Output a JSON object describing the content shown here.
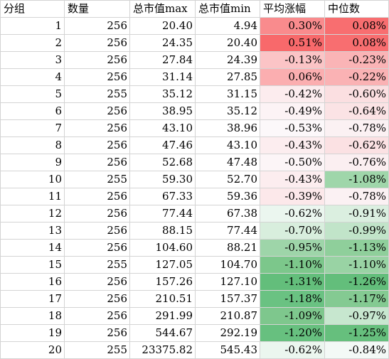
{
  "table": {
    "headers": [
      "分组",
      "数量",
      "总市值max",
      "总市值min",
      "平均涨幅",
      "中位数"
    ],
    "rows": [
      {
        "group": "1",
        "count": "256",
        "max": "20.40",
        "min": "4.94",
        "avg": "0.30%",
        "median": "0.08%",
        "avg_color": "#f98b8d",
        "median_color": "#f86e70"
      },
      {
        "group": "2",
        "count": "256",
        "max": "24.35",
        "min": "20.40",
        "avg": "0.51%",
        "median": "0.08%",
        "avg_color": "#f8696b",
        "median_color": "#f86e70"
      },
      {
        "group": "3",
        "count": "256",
        "max": "27.84",
        "min": "24.39",
        "avg": "-0.13%",
        "median": "-0.23%",
        "avg_color": "#fbc4c6",
        "median_color": "#fab4b6"
      },
      {
        "group": "4",
        "count": "256",
        "max": "31.14",
        "min": "27.85",
        "avg": "0.06%",
        "median": "-0.22%",
        "avg_color": "#fbaeb0",
        "median_color": "#fab2b4"
      },
      {
        "group": "5",
        "count": "255",
        "max": "35.12",
        "min": "31.15",
        "avg": "-0.42%",
        "median": "-0.60%",
        "avg_color": "#fcecee",
        "median_color": "#fbdfe1"
      },
      {
        "group": "6",
        "count": "256",
        "max": "38.95",
        "min": "35.12",
        "avg": "-0.49%",
        "median": "-0.64%",
        "avg_color": "#fcf3f5",
        "median_color": "#fbe3e5"
      },
      {
        "group": "7",
        "count": "256",
        "max": "43.10",
        "min": "38.96",
        "avg": "-0.53%",
        "median": "-0.78%",
        "avg_color": "#fcf8fa",
        "median_color": "#fbf1f3"
      },
      {
        "group": "8",
        "count": "256",
        "max": "47.46",
        "min": "43.10",
        "avg": "-0.43%",
        "median": "-0.62%",
        "avg_color": "#fcedef",
        "median_color": "#fbe1e3"
      },
      {
        "group": "9",
        "count": "256",
        "max": "52.68",
        "min": "47.48",
        "avg": "-0.50%",
        "median": "-0.76%",
        "avg_color": "#fcf5f7",
        "median_color": "#fbeff1"
      },
      {
        "group": "10",
        "count": "255",
        "max": "59.30",
        "min": "52.70",
        "avg": "-0.43%",
        "median": "-1.08%",
        "avg_color": "#fcedef",
        "median_color": "#9fd6aa"
      },
      {
        "group": "11",
        "count": "256",
        "max": "67.33",
        "min": "59.36",
        "avg": "-0.39%",
        "median": "-0.78%",
        "avg_color": "#fce8ea",
        "median_color": "#fbf1f3"
      },
      {
        "group": "12",
        "count": "256",
        "max": "77.44",
        "min": "67.38",
        "avg": "-0.62%",
        "median": "-0.91%",
        "avg_color": "#ebf6ef",
        "median_color": "#dbefe0"
      },
      {
        "group": "13",
        "count": "256",
        "max": "88.15",
        "min": "77.44",
        "avg": "-0.70%",
        "median": "-0.99%",
        "avg_color": "#d8eedd",
        "median_color": "#c1e4c9"
      },
      {
        "group": "14",
        "count": "256",
        "max": "104.60",
        "min": "88.21",
        "avg": "-0.95%",
        "median": "-1.13%",
        "avg_color": "#9ed5a9",
        "median_color": "#8fcf9b"
      },
      {
        "group": "15",
        "count": "255",
        "max": "127.05",
        "min": "104.70",
        "avg": "-1.10%",
        "median": "-1.10%",
        "avg_color": "#7cc78b",
        "median_color": "#99d3a4"
      },
      {
        "group": "16",
        "count": "256",
        "max": "157.26",
        "min": "127.10",
        "avg": "-1.31%",
        "median": "-1.26%",
        "avg_color": "#63be7b",
        "median_color": "#63be7b"
      },
      {
        "group": "17",
        "count": "256",
        "max": "210.51",
        "min": "157.37",
        "avg": "-1.18%",
        "median": "-1.17%",
        "avg_color": "#6ac282",
        "median_color": "#84ca92"
      },
      {
        "group": "18",
        "count": "256",
        "max": "291.99",
        "min": "210.87",
        "avg": "-1.09%",
        "median": "-0.97%",
        "avg_color": "#7ec78d",
        "median_color": "#c7e7cf"
      },
      {
        "group": "19",
        "count": "256",
        "max": "544.67",
        "min": "292.19",
        "avg": "-1.20%",
        "median": "-1.25%",
        "avg_color": "#67c07f",
        "median_color": "#66bf7d"
      },
      {
        "group": "20",
        "count": "255",
        "max": "23375.82",
        "min": "545.43",
        "avg": "-0.62%",
        "median": "-0.84%",
        "avg_color": "#ebf6ef",
        "median_color": "#f3f9f6"
      }
    ]
  }
}
